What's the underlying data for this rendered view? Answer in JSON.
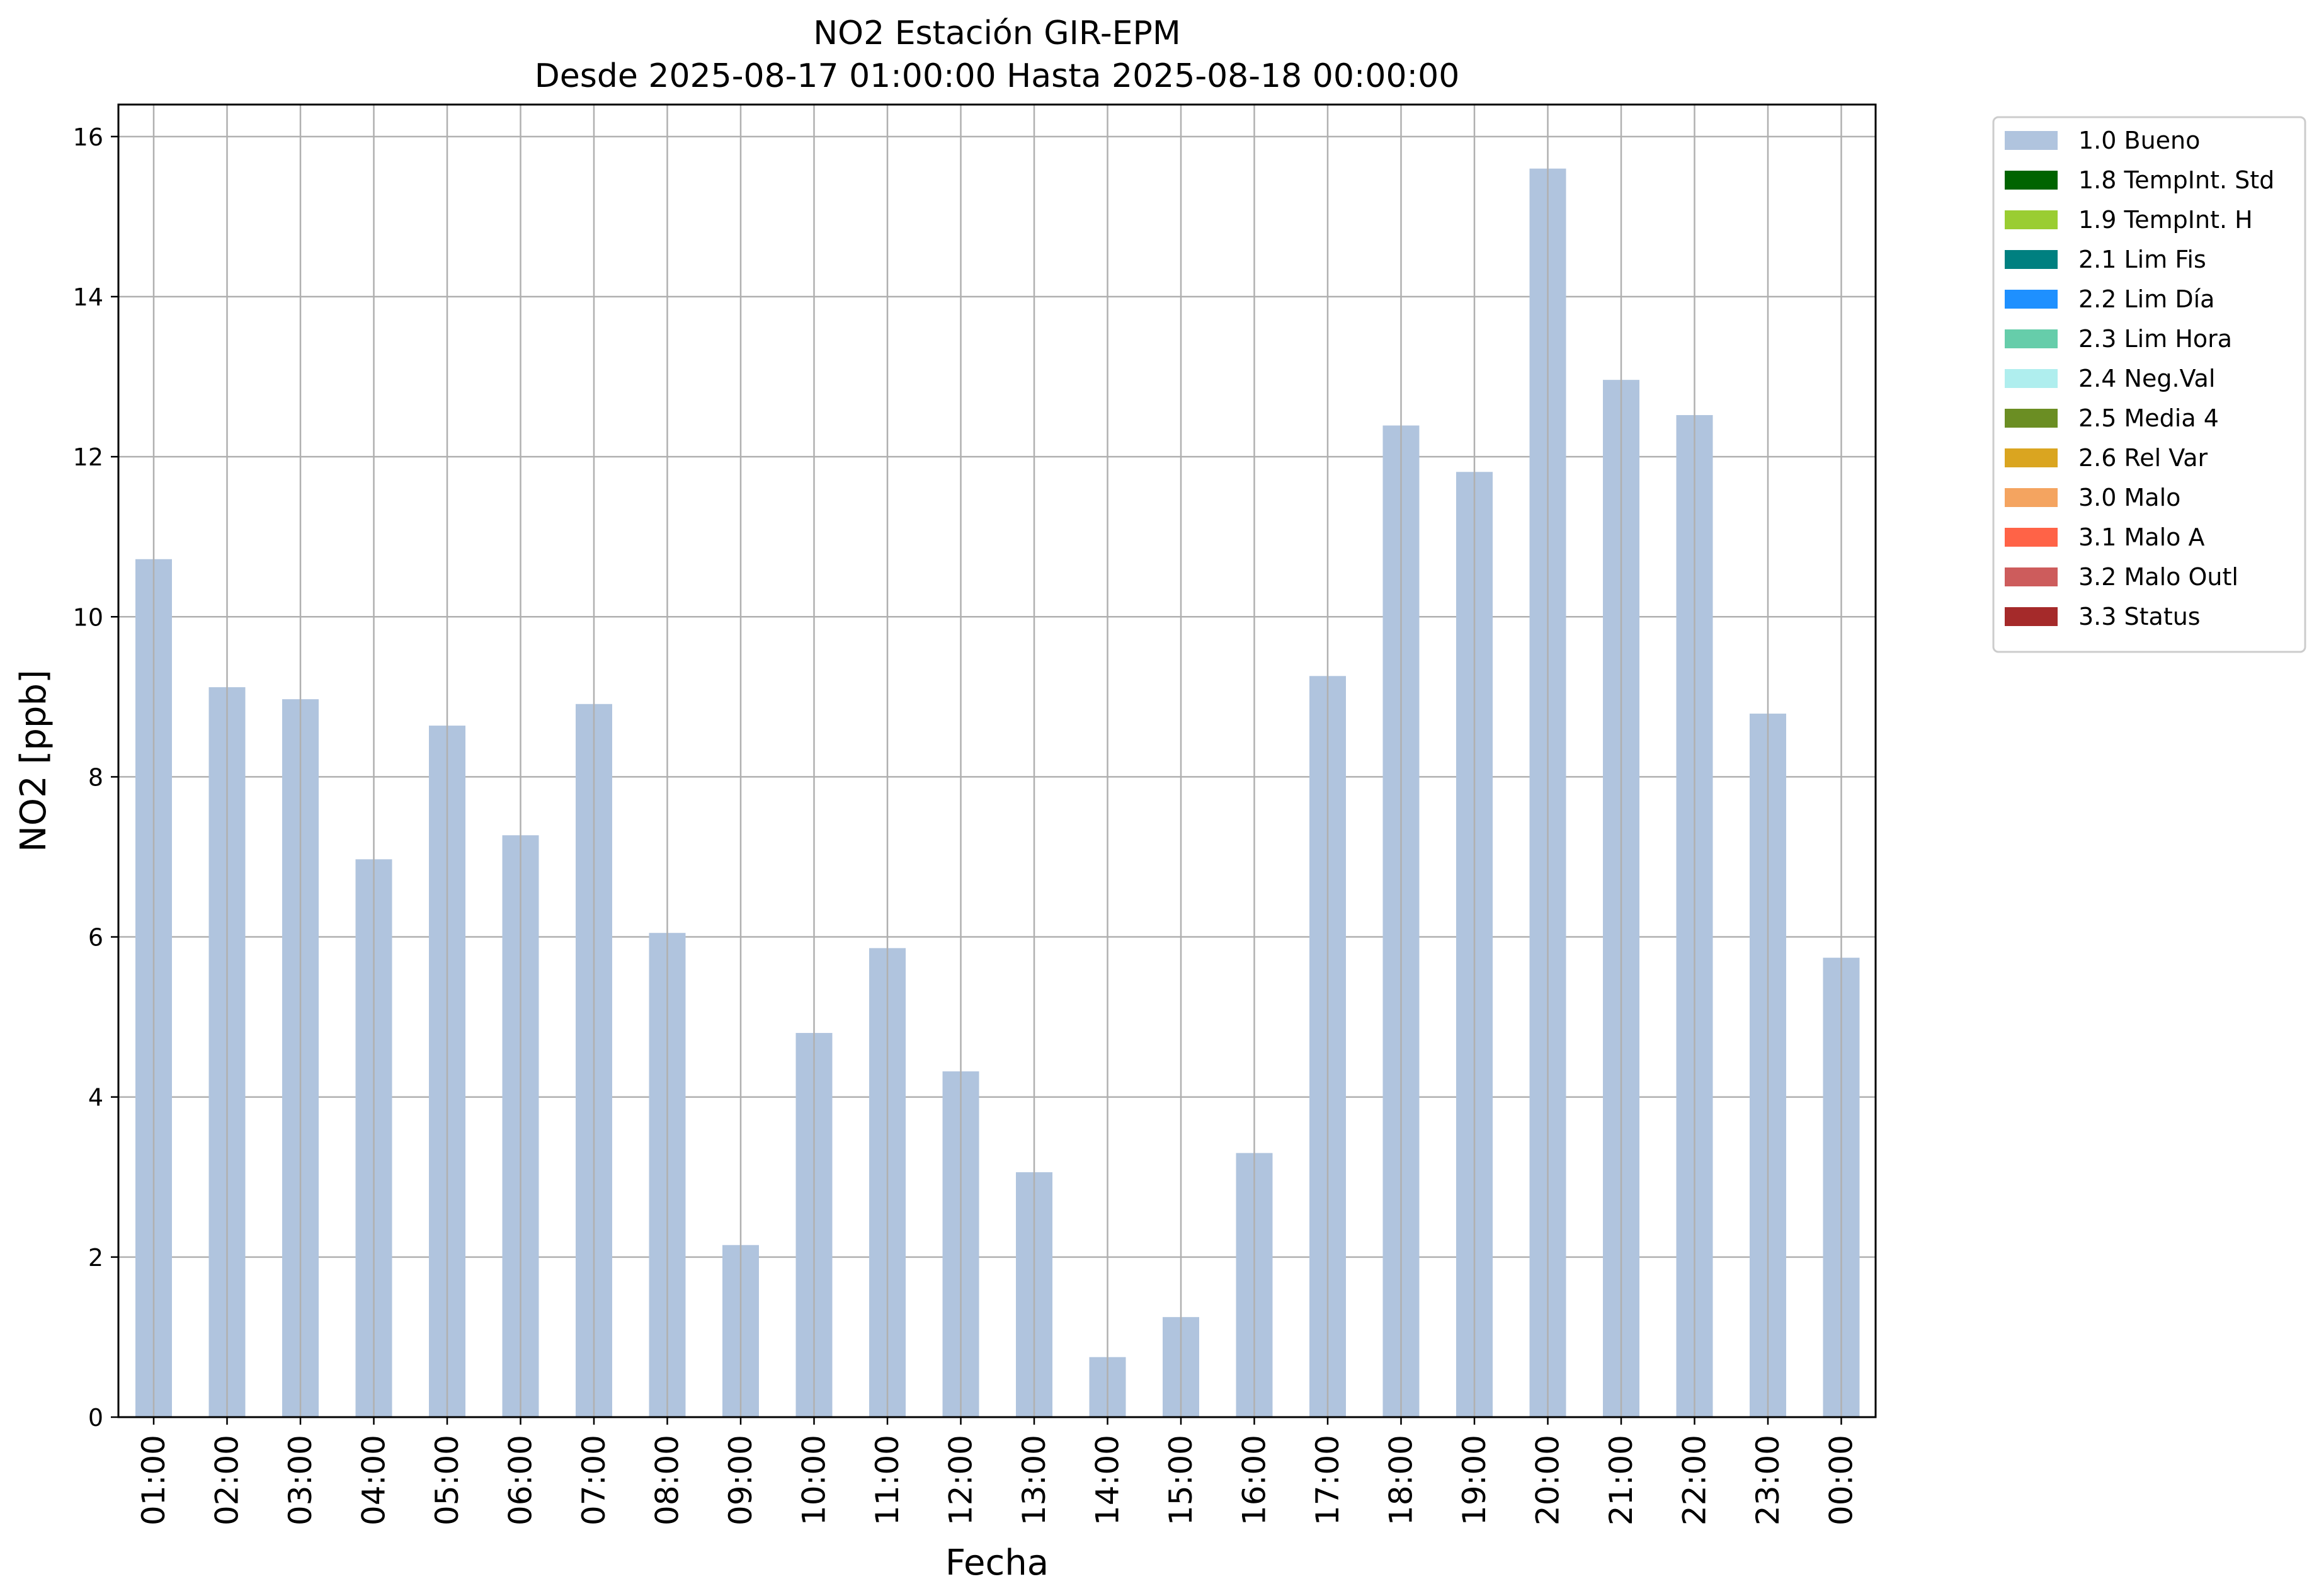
{
  "chart_data": {
    "type": "bar",
    "title": "NO2 Estación GIR-EPM",
    "subtitle": "Desde 2025-08-17 01:00:00 Hasta 2025-08-18 00:00:00",
    "xlabel": "Fecha",
    "ylabel": "NO2 [ppb]",
    "ylim": [
      0,
      16.4
    ],
    "yticks": [
      0,
      2,
      4,
      6,
      8,
      10,
      12,
      14,
      16
    ],
    "grid": true,
    "legend_position": "outside-right",
    "categories": [
      "01:00",
      "02:00",
      "03:00",
      "04:00",
      "05:00",
      "06:00",
      "07:00",
      "08:00",
      "09:00",
      "10:00",
      "11:00",
      "12:00",
      "13:00",
      "14:00",
      "15:00",
      "16:00",
      "17:00",
      "18:00",
      "19:00",
      "20:00",
      "21:00",
      "22:00",
      "23:00",
      "00:00"
    ],
    "series": [
      {
        "name": "1.0 Bueno",
        "color": "#b0c4de",
        "values": [
          10.72,
          9.12,
          8.97,
          6.97,
          8.64,
          7.27,
          8.91,
          6.05,
          2.15,
          4.8,
          5.86,
          4.32,
          3.06,
          0.75,
          1.25,
          3.3,
          9.26,
          12.39,
          11.81,
          15.6,
          12.96,
          12.52,
          8.79,
          5.74
        ]
      }
    ],
    "legend": [
      {
        "label": "1.0 Bueno",
        "color": "#b0c4de"
      },
      {
        "label": "1.8 TempInt. Std",
        "color": "#006400"
      },
      {
        "label": "1.9 TempInt. H",
        "color": "#9acd32"
      },
      {
        "label": "2.1 Lim Fis",
        "color": "#008080"
      },
      {
        "label": "2.2 Lim Día",
        "color": "#1e90ff"
      },
      {
        "label": "2.3 Lim Hora",
        "color": "#66cdaa"
      },
      {
        "label": "2.4 Neg.Val",
        "color": "#afeeee"
      },
      {
        "label": "2.5 Media 4",
        "color": "#6b8e23"
      },
      {
        "label": "2.6 Rel Var",
        "color": "#daa520"
      },
      {
        "label": "3.0 Malo",
        "color": "#f4a460"
      },
      {
        "label": "3.1 Malo A",
        "color": "#ff6347"
      },
      {
        "label": "3.2 Malo Outl",
        "color": "#cd5c5c"
      },
      {
        "label": "3.3 Status",
        "color": "#a52a2a"
      }
    ]
  }
}
